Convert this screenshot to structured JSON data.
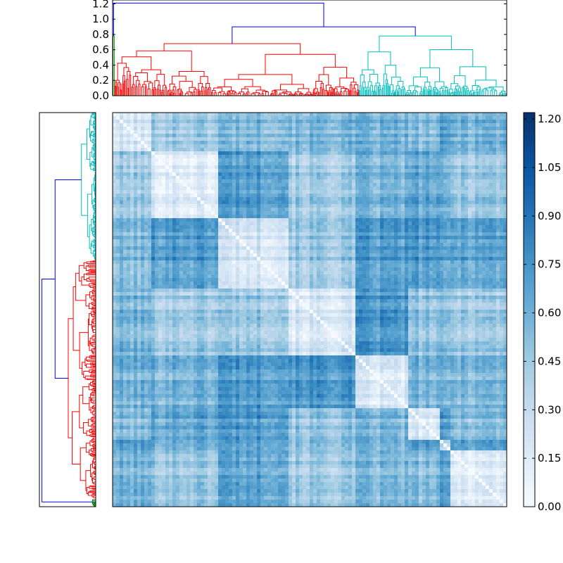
{
  "chart_data": [
    {
      "type": "dendrogram",
      "name": "top-dendrogram",
      "orientation": "top",
      "ylim": [
        0.0,
        1.25
      ],
      "yticks": [
        "0.0",
        "0.2",
        "0.4",
        "0.6",
        "0.8",
        "1.0",
        "1.2"
      ],
      "clusters": [
        {
          "name": "green",
          "color": "#008000",
          "leaf_fraction": 0.005,
          "height": 0.78
        },
        {
          "name": "red",
          "color": "#ff0000",
          "leaf_fraction": 0.62,
          "height": 0.68
        },
        {
          "name": "cyan",
          "color": "#00bfbf",
          "leaf_fraction": 0.375,
          "height": 0.78
        }
      ],
      "links": [
        {
          "name": "root",
          "height": 1.21,
          "color": "#0000ff"
        },
        {
          "name": "red-cyan",
          "height": 0.9,
          "color": "#0000ff"
        }
      ]
    },
    {
      "type": "dendrogram",
      "name": "left-dendrogram",
      "orientation": "left",
      "clusters": [
        {
          "name": "cyan",
          "color": "#00bfbf",
          "leaf_fraction": 0.375
        },
        {
          "name": "red",
          "color": "#ff0000",
          "leaf_fraction": 0.605
        },
        {
          "name": "green",
          "color": "#008000",
          "leaf_fraction": 0.02
        }
      ],
      "links": [
        {
          "name": "root",
          "color": "#0000ff"
        },
        {
          "name": "cyan-red",
          "color": "#0000ff"
        }
      ]
    },
    {
      "type": "heatmap",
      "name": "distance-matrix",
      "colormap": "Blues",
      "vmin": 0.0,
      "vmax": 1.22,
      "diagonal_value": 0.0,
      "block_boundaries": [
        0.0,
        0.1,
        0.27,
        0.45,
        0.62,
        0.75,
        0.83,
        0.86,
        1.0
      ],
      "typical_within_block": 0.25,
      "typical_between_block": 0.62
    },
    {
      "type": "colorbar",
      "name": "colorbar",
      "colormap": "Blues",
      "range": [
        0.0,
        1.22
      ],
      "ticks": [
        "0.00",
        "0.15",
        "0.30",
        "0.45",
        "0.60",
        "0.75",
        "0.90",
        "1.05",
        "1.20"
      ]
    }
  ]
}
